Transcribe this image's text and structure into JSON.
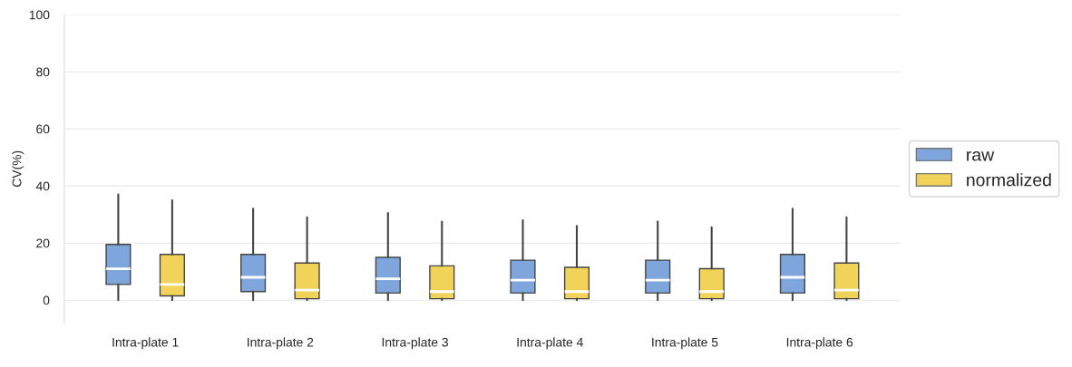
{
  "chart_data": {
    "type": "box",
    "ylabel": "CV(%)",
    "categories": [
      "Intra-plate 1",
      "Intra-plate 2",
      "Intra-plate 3",
      "Intra-plate 4",
      "Intra-plate 5",
      "Intra-plate 6"
    ],
    "series": [
      {
        "name": "raw",
        "color": "#7ea6dc",
        "boxes": [
          {
            "low": 0,
            "q1": 5.5,
            "median": 11,
            "q3": 19.5,
            "high": 37
          },
          {
            "low": 0,
            "q1": 3,
            "median": 8,
            "q3": 16,
            "high": 32
          },
          {
            "low": 0,
            "q1": 2.5,
            "median": 7.5,
            "q3": 15,
            "high": 30.5
          },
          {
            "low": 0,
            "q1": 2.5,
            "median": 7,
            "q3": 14,
            "high": 28
          },
          {
            "low": 0,
            "q1": 2.5,
            "median": 7,
            "q3": 14,
            "high": 27.5
          },
          {
            "low": 0,
            "q1": 2.5,
            "median": 8,
            "q3": 16,
            "high": 32
          }
        ]
      },
      {
        "name": "normalized",
        "color": "#f2d35a",
        "boxes": [
          {
            "low": 0,
            "q1": 1.5,
            "median": 5.5,
            "q3": 16,
            "high": 35
          },
          {
            "low": 0,
            "q1": 0.5,
            "median": 3.5,
            "q3": 13,
            "high": 29
          },
          {
            "low": 0,
            "q1": 0.5,
            "median": 3,
            "q3": 12,
            "high": 27.5
          },
          {
            "low": 0,
            "q1": 0.5,
            "median": 3,
            "q3": 11.5,
            "high": 26
          },
          {
            "low": 0,
            "q1": 0.5,
            "median": 3,
            "q3": 11,
            "high": 25.5
          },
          {
            "low": 0,
            "q1": 0.5,
            "median": 3.5,
            "q3": 13,
            "high": 29
          }
        ]
      }
    ],
    "ylim": [
      -8,
      100
    ],
    "yticks": [
      0,
      20,
      40,
      60,
      80,
      100
    ],
    "grid": "y",
    "legend": "right"
  }
}
